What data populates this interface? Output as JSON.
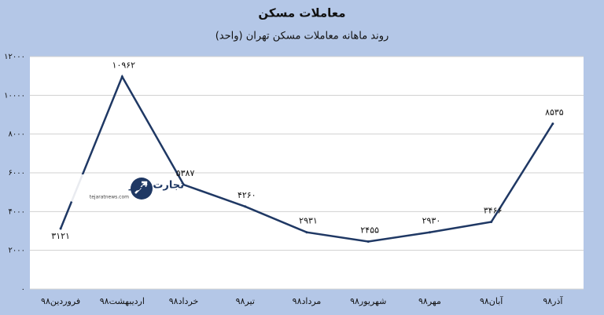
{
  "chart_data": {
    "type": "line",
    "title": "معاملات مسکن",
    "subtitle": "روند ماهانه معاملات مسکن تهران (واحد)",
    "categories": [
      "فروردین۹۸",
      "اردیبهشت۹۸",
      "خرداد۹۸",
      "تیر۹۸",
      "مرداد۹۸",
      "شهریور۹۸",
      "مهر۹۸",
      "آبان۹۸",
      "آذر۹۸"
    ],
    "values": [
      3121,
      10962,
      5387,
      4260,
      2931,
      2455,
      2930,
      3466,
      8535
    ],
    "value_labels": [
      "۳۱۲۱",
      "۱۰۹۶۲",
      "۵۳۸۷",
      "۴۲۶۰",
      "۲۹۳۱",
      "۲۴۵۵",
      "۲۹۳۰",
      "۳۴۶۶",
      "۸۵۳۵"
    ],
    "color": "#1f3864",
    "ylim": [
      0,
      12000
    ],
    "yticks": [
      {
        "value": 0,
        "label": "۰"
      },
      {
        "value": 2000,
        "label": "۲۰۰۰"
      },
      {
        "value": 4000,
        "label": "۴۰۰۰"
      },
      {
        "value": 6000,
        "label": "۶۰۰۰"
      },
      {
        "value": 8000,
        "label": "۸۰۰۰"
      },
      {
        "value": 10000,
        "label": "۱۰۰۰۰"
      },
      {
        "value": 12000,
        "label": "۱۲۰۰۰"
      }
    ],
    "grid": true,
    "watermark": {
      "name": "تجارت نیوز",
      "url": "tejaratnews.com"
    }
  }
}
